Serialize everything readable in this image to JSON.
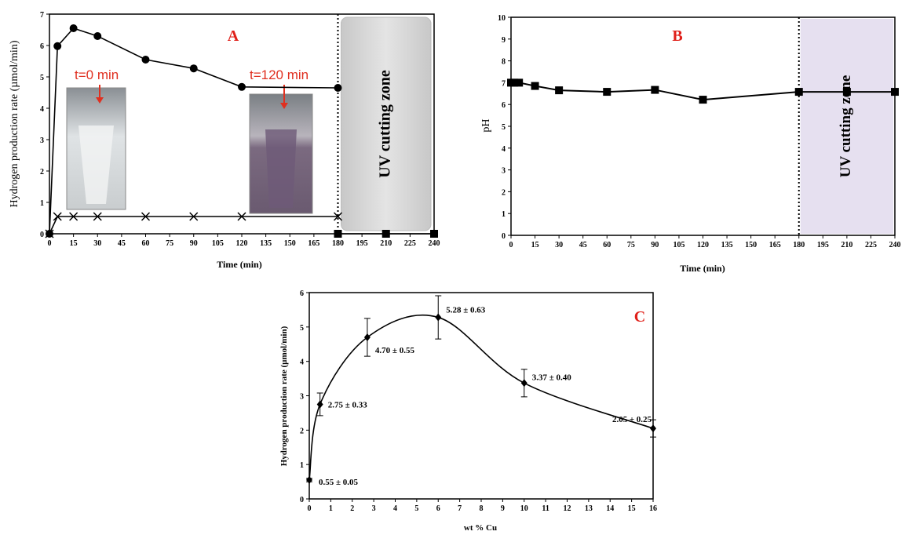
{
  "chart_data": [
    {
      "type": "line",
      "label": "A",
      "x_label": "Time (min)",
      "y_label": "Hydrogen production rate (µmol/min)",
      "annotations": [
        "t=0 min",
        "t=120 min",
        "UV cutting zone"
      ],
      "xlim": [
        0,
        240
      ],
      "xticks": [
        0,
        15,
        30,
        45,
        60,
        75,
        90,
        105,
        120,
        135,
        150,
        165,
        180,
        195,
        210,
        225,
        240
      ],
      "ylim": [
        0,
        7
      ],
      "yticks": [
        0,
        1,
        2,
        3,
        4,
        5,
        6,
        7
      ],
      "uv_zone": [
        180,
        240
      ],
      "zone_color": "#d4d4d4",
      "series": [
        {
          "marker": "circle",
          "color": "#000000",
          "x": [
            0,
            5,
            15,
            30,
            60,
            90,
            120,
            180
          ],
          "values": [
            0,
            5.98,
            6.55,
            6.3,
            5.55,
            5.27,
            4.68,
            4.65
          ]
        },
        {
          "marker": "cross",
          "color": "#000000",
          "x": [
            0,
            5,
            15,
            30,
            60,
            90,
            120,
            180
          ],
          "values": [
            0,
            0.55,
            0.55,
            0.55,
            0.55,
            0.55,
            0.55,
            0.55
          ]
        },
        {
          "marker": "square",
          "color": "#000000",
          "x": [
            180,
            210,
            240
          ],
          "values": [
            0,
            0,
            0
          ]
        }
      ]
    },
    {
      "type": "line",
      "label": "B",
      "x_label": "Time (min)",
      "y_label": "pH",
      "annotations": [
        "UV cutting zone"
      ],
      "xlim": [
        0,
        240
      ],
      "xticks": [
        0,
        15,
        30,
        45,
        60,
        75,
        90,
        105,
        120,
        135,
        150,
        165,
        180,
        195,
        210,
        225,
        240
      ],
      "ylim": [
        0,
        10
      ],
      "yticks": [
        0,
        1,
        2,
        3,
        4,
        5,
        6,
        7,
        8,
        9,
        10
      ],
      "uv_zone": [
        180,
        240
      ],
      "zone_color": "#e6e0f0",
      "series": [
        {
          "marker": "square",
          "color": "#000000",
          "x": [
            0,
            2,
            5,
            15,
            30,
            60,
            90,
            120,
            180,
            210,
            240
          ],
          "values": [
            7.0,
            7.0,
            7.0,
            6.85,
            6.65,
            6.58,
            6.67,
            6.22,
            6.58,
            6.58,
            6.58
          ]
        }
      ]
    },
    {
      "type": "line",
      "label": "C",
      "smooth": true,
      "x_label": "wt % Cu",
      "y_label": "Hydrogen production rate (µmol/min)",
      "xlim": [
        0,
        16
      ],
      "xticks": [
        0,
        1,
        2,
        3,
        4,
        5,
        6,
        7,
        8,
        9,
        10,
        11,
        12,
        13,
        14,
        15,
        16
      ],
      "ylim": [
        0,
        6
      ],
      "yticks": [
        0,
        1,
        2,
        3,
        4,
        5,
        6
      ],
      "series": [
        {
          "marker": "diamond",
          "color": "#000000",
          "x": [
            0,
            0.5,
            2.7,
            6,
            10,
            16
          ],
          "values": [
            0.55,
            2.75,
            4.7,
            5.28,
            3.37,
            2.05
          ],
          "errors": [
            0.05,
            0.33,
            0.55,
            0.63,
            0.4,
            0.25
          ],
          "value_labels": [
            "0.55 ± 0.05",
            "2.75 ± 0.33",
            "4.70 ± 0.55",
            "5.28 ± 0.63",
            "3.37 ± 0.40",
            "2.05 ± 0.25"
          ]
        }
      ]
    }
  ]
}
